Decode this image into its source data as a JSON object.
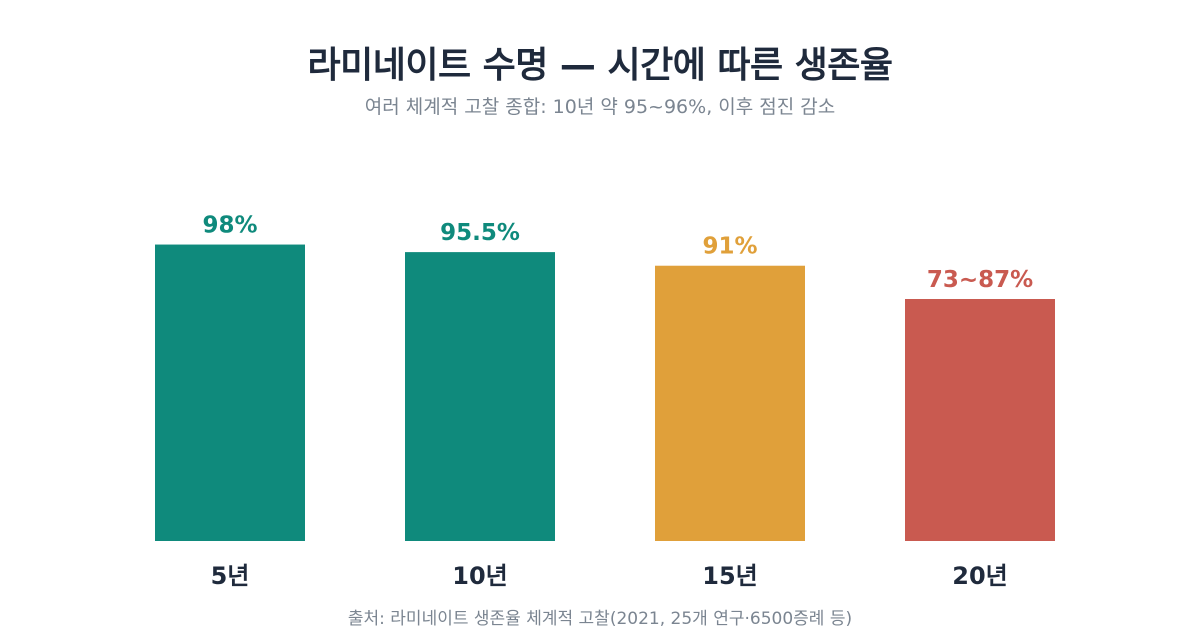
{
  "chart_data": {
    "type": "bar",
    "title": "라미네이트 수명 — 시간에 따른 생존율",
    "subtitle": "여러 체계적 고찰 종합: 10년 약 95~96%, 이후 점진 감소",
    "xlabel": "",
    "ylabel": "",
    "ylim": [
      0,
      100
    ],
    "grid": false,
    "categories": [
      "5년",
      "10년",
      "15년",
      "20년"
    ],
    "values": [
      98,
      95.5,
      91,
      80
    ],
    "value_ranges": [
      null,
      null,
      null,
      [
        73,
        87
      ]
    ],
    "data_labels": [
      "98%",
      "95.5%",
      "91%",
      "73~87%"
    ],
    "colors": [
      "#0f8a7c",
      "#0f8a7c",
      "#e0a03a",
      "#c95a50"
    ],
    "source": "출처: 라미네이트 생존율 체계적 고찰(2021, 25개 연구·6500증례 등)"
  }
}
